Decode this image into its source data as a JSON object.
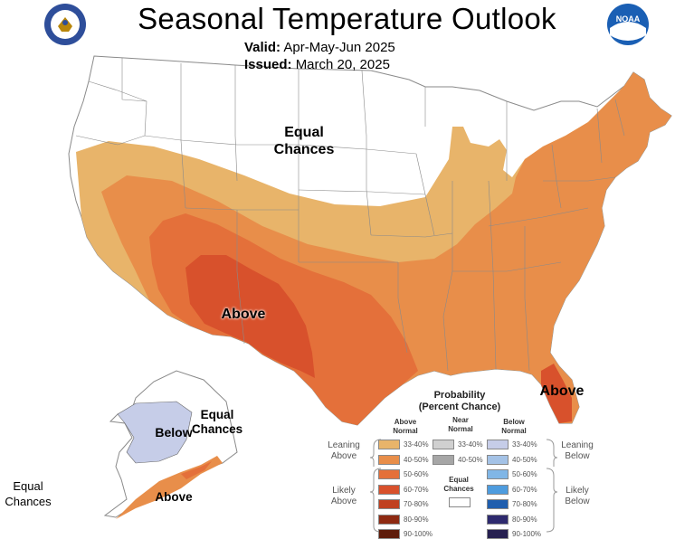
{
  "title": "Seasonal Temperature Outlook",
  "valid_label": "Valid:",
  "valid_value": "Apr-May-Jun 2025",
  "issued_label": "Issued:",
  "issued_value": "March 20, 2025",
  "logos": {
    "left": "doc-seal-icon",
    "right": "noaa-logo-icon",
    "right_text": "NOAA"
  },
  "map_labels": {
    "equal_north_line1": "Equal",
    "equal_north_line2": "Chances",
    "above_southwest": "Above",
    "above_florida": "Above",
    "alaska_below": "Below",
    "alaska_equal_line1": "Equal",
    "alaska_equal_line2": "Chances",
    "alaska_above": "Above",
    "hawaii_equal_line1": "Equal",
    "hawaii_equal_line2": "Chances"
  },
  "legend": {
    "title_line1": "Probability",
    "title_line2": "(Percent Chance)",
    "col_above_line1": "Above",
    "col_above_line2": "Normal",
    "col_near_line1": "Near",
    "col_near_line2": "Normal",
    "col_below_line1": "Below",
    "col_below_line2": "Normal",
    "leaning_left_line1": "Leaning",
    "leaning_left_line2": "Above",
    "likely_left_line1": "Likely",
    "likely_left_line2": "Above",
    "leaning_right_line1": "Leaning",
    "leaning_right_line2": "Below",
    "likely_right_line1": "Likely",
    "likely_right_line2": "Below",
    "equal_line1": "Equal",
    "equal_line2": "Chances",
    "above": [
      {
        "range": "33-40%",
        "color": "#E8B46A"
      },
      {
        "range": "40-50%",
        "color": "#E88E4A"
      },
      {
        "range": "50-60%",
        "color": "#E4703A"
      },
      {
        "range": "60-70%",
        "color": "#D8512C"
      },
      {
        "range": "70-80%",
        "color": "#C0401F"
      },
      {
        "range": "80-90%",
        "color": "#8E2A12"
      },
      {
        "range": "90-100%",
        "color": "#5E1C0A"
      }
    ],
    "near": [
      {
        "range": "33-40%",
        "color": "#D0D0D0"
      },
      {
        "range": "40-50%",
        "color": "#A6A6A6"
      }
    ],
    "below": [
      {
        "range": "33-40%",
        "color": "#C6CDE8"
      },
      {
        "range": "40-50%",
        "color": "#A4C2E6"
      },
      {
        "range": "50-60%",
        "color": "#80B6E6"
      },
      {
        "range": "60-70%",
        "color": "#4E9CDE"
      },
      {
        "range": "70-80%",
        "color": "#1F5EAE"
      },
      {
        "range": "80-90%",
        "color": "#2E2A6E"
      },
      {
        "range": "90-100%",
        "color": "#262050"
      }
    ]
  }
}
